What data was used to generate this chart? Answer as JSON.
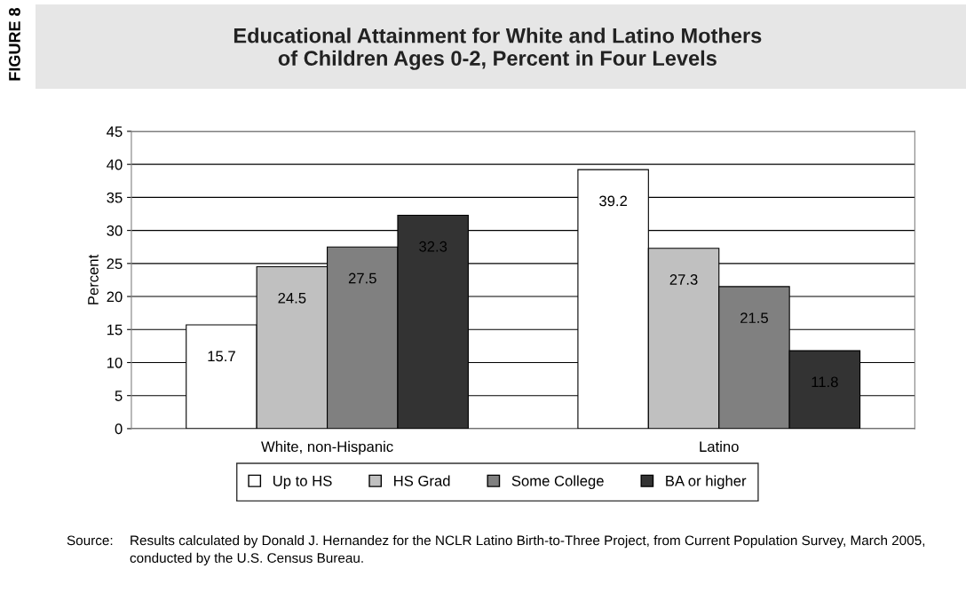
{
  "chart_data": {
    "type": "bar",
    "title": "Educational Attainment for White and Latino Mothers\nof Children Ages 0-2, Percent in Four Levels",
    "ylabel": "Percent",
    "categories": [
      "White, non-Hispanic",
      "Latino"
    ],
    "series": [
      {
        "name": "Up to HS",
        "color": "#ffffff",
        "values": [
          15.7,
          39.2
        ]
      },
      {
        "name": "HS Grad",
        "color": "#c0c0c0",
        "values": [
          24.5,
          27.3
        ]
      },
      {
        "name": "Some College",
        "color": "#808080",
        "values": [
          27.5,
          21.5
        ]
      },
      {
        "name": "BA or higher",
        "color": "#333333",
        "values": [
          32.3,
          11.8
        ]
      }
    ],
    "ylim": [
      0,
      45
    ],
    "yticks": [
      0,
      5,
      10,
      15,
      20,
      25,
      30,
      35,
      40,
      45
    ],
    "grid": "y",
    "legend": "bottom",
    "data_labels": true,
    "annotations": [
      "FIGURE 8",
      "Source:",
      "Results calculated by Donald J. Hernandez for the NCLR Latino Birth-to-Three Project, from Current Population Survey, March 2005, conducted by the U.S. Census Bureau."
    ]
  }
}
